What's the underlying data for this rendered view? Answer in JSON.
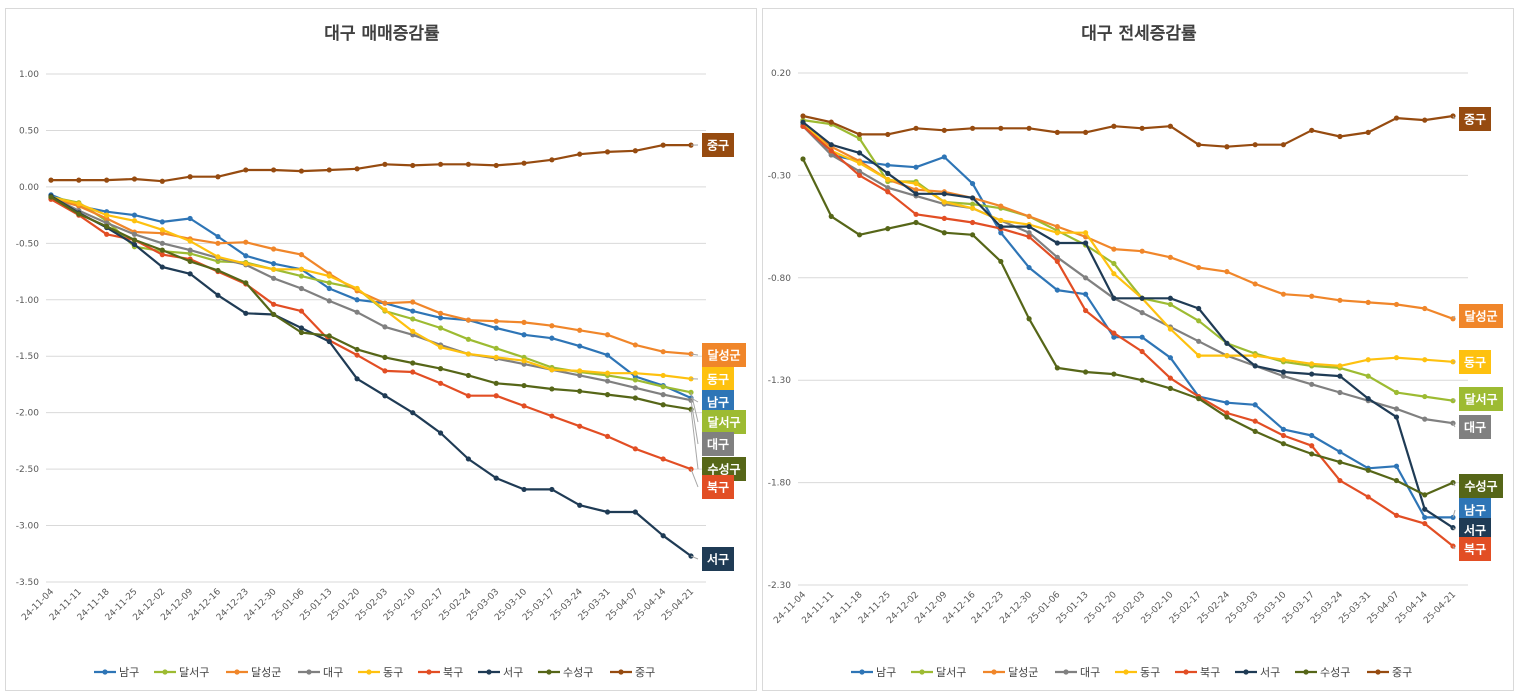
{
  "colors": {
    "남구": "#2e75b6",
    "달서구": "#9dbb32",
    "달성군": "#f0862a",
    "대구": "#808080",
    "동구": "#fec10f",
    "북구": "#e24e24",
    "서구": "#1f3b55",
    "수성구": "#566618",
    "중구": "#964b10"
  },
  "chart_data": [
    {
      "type": "line",
      "title": "대구 매매증감률",
      "ylim": [
        -3.5,
        1.0
      ],
      "ytick_step": 0.5,
      "ytick_labels": [
        "1.00",
        "0.50",
        "0.00",
        "-0.50",
        "-1.00",
        "-1.50",
        "-2.00",
        "-2.50",
        "-3.00",
        "-3.50"
      ],
      "categories": [
        "24-11-04",
        "24-11-11",
        "24-11-18",
        "24-11-25",
        "24-12-02",
        "24-12-09",
        "24-12-16",
        "24-12-23",
        "24-12-30",
        "25-01-06",
        "25-01-13",
        "25-01-20",
        "25-02-03",
        "25-02-10",
        "25-02-17",
        "25-02-24",
        "25-03-03",
        "25-03-10",
        "25-03-17",
        "25-03-24",
        "25-03-31",
        "25-04-07",
        "25-04-14",
        "25-04-21"
      ],
      "series": [
        {
          "name": "남구",
          "values": [
            -0.07,
            -0.17,
            -0.22,
            -0.25,
            -0.31,
            -0.28,
            -0.44,
            -0.61,
            -0.68,
            -0.73,
            -0.9,
            -1.0,
            -1.03,
            -1.1,
            -1.16,
            -1.18,
            -1.25,
            -1.31,
            -1.34,
            -1.41,
            -1.49,
            -1.68,
            -1.76,
            -1.87
          ]
        },
        {
          "name": "달서구",
          "values": [
            -0.09,
            -0.14,
            -0.3,
            -0.53,
            -0.57,
            -0.59,
            -0.66,
            -0.67,
            -0.73,
            -0.79,
            -0.85,
            -0.9,
            -1.1,
            -1.17,
            -1.25,
            -1.35,
            -1.43,
            -1.51,
            -1.6,
            -1.64,
            -1.67,
            -1.71,
            -1.77,
            -1.82
          ]
        },
        {
          "name": "달성군",
          "values": [
            -0.1,
            -0.17,
            -0.28,
            -0.4,
            -0.41,
            -0.46,
            -0.5,
            -0.49,
            -0.55,
            -0.6,
            -0.77,
            -0.92,
            -1.03,
            -1.02,
            -1.12,
            -1.18,
            -1.19,
            -1.2,
            -1.23,
            -1.27,
            -1.31,
            -1.4,
            -1.46,
            -1.48
          ]
        },
        {
          "name": "대구",
          "values": [
            -0.09,
            -0.21,
            -0.32,
            -0.42,
            -0.5,
            -0.56,
            -0.63,
            -0.69,
            -0.81,
            -0.9,
            -1.01,
            -1.11,
            -1.24,
            -1.31,
            -1.4,
            -1.48,
            -1.52,
            -1.57,
            -1.62,
            -1.67,
            -1.72,
            -1.78,
            -1.84,
            -1.89
          ]
        },
        {
          "name": "동구",
          "values": [
            -0.09,
            -0.15,
            -0.25,
            -0.3,
            -0.38,
            -0.48,
            -0.62,
            -0.68,
            -0.73,
            -0.73,
            -0.79,
            -0.9,
            -1.09,
            -1.28,
            -1.42,
            -1.48,
            -1.51,
            -1.54,
            -1.62,
            -1.63,
            -1.65,
            -1.65,
            -1.67,
            -1.7
          ]
        },
        {
          "name": "북구",
          "values": [
            -0.11,
            -0.25,
            -0.42,
            -0.47,
            -0.6,
            -0.64,
            -0.75,
            -0.86,
            -1.04,
            -1.1,
            -1.36,
            -1.49,
            -1.63,
            -1.64,
            -1.74,
            -1.85,
            -1.85,
            -1.94,
            -2.03,
            -2.12,
            -2.21,
            -2.32,
            -2.41,
            -2.5
          ]
        },
        {
          "name": "서구",
          "values": [
            -0.08,
            -0.23,
            -0.36,
            -0.51,
            -0.71,
            -0.77,
            -0.96,
            -1.12,
            -1.13,
            -1.25,
            -1.37,
            -1.7,
            -1.85,
            -2.0,
            -2.18,
            -2.41,
            -2.58,
            -2.68,
            -2.68,
            -2.82,
            -2.88,
            -2.88,
            -3.09,
            -3.27
          ]
        },
        {
          "name": "수성구",
          "values": [
            -0.09,
            -0.24,
            -0.35,
            -0.47,
            -0.56,
            -0.66,
            -0.74,
            -0.85,
            -1.13,
            -1.29,
            -1.32,
            -1.44,
            -1.51,
            -1.56,
            -1.61,
            -1.67,
            -1.74,
            -1.76,
            -1.79,
            -1.81,
            -1.84,
            -1.87,
            -1.93,
            -1.97
          ]
        },
        {
          "name": "중구",
          "values": [
            0.06,
            0.06,
            0.06,
            0.07,
            0.05,
            0.09,
            0.09,
            0.15,
            0.15,
            0.14,
            0.15,
            0.16,
            0.2,
            0.19,
            0.2,
            0.2,
            0.19,
            0.21,
            0.24,
            0.29,
            0.31,
            0.32,
            0.37,
            0.37
          ]
        }
      ],
      "end_labels": [
        "중구",
        "달성군",
        "동구",
        "남구",
        "달서구",
        "대구",
        "수성구",
        "북구",
        "서구"
      ],
      "legend": [
        "남구",
        "달서구",
        "달성군",
        "대구",
        "동구",
        "북구",
        "서구",
        "수성구",
        "중구"
      ]
    },
    {
      "type": "line",
      "title": "대구 전세증감률",
      "ylim": [
        -2.3,
        0.2
      ],
      "ytick_step": 0.5,
      "ytick_labels": [
        "0.20",
        "-0.30",
        "-0.80",
        "-1.30",
        "-1.80",
        "-2.30"
      ],
      "categories": [
        "24-11-04",
        "24-11-11",
        "24-11-18",
        "24-11-25",
        "24-12-02",
        "24-12-09",
        "24-12-16",
        "24-12-23",
        "24-12-30",
        "25-01-06",
        "25-01-13",
        "25-01-20",
        "25-02-03",
        "25-02-10",
        "25-02-17",
        "25-02-24",
        "25-03-03",
        "25-03-10",
        "25-03-17",
        "25-03-24",
        "25-03-31",
        "25-04-07",
        "25-04-14",
        "25-04-21"
      ],
      "series": [
        {
          "name": "남구",
          "values": [
            -0.05,
            -0.2,
            -0.23,
            -0.25,
            -0.26,
            -0.21,
            -0.34,
            -0.58,
            -0.75,
            -0.86,
            -0.88,
            -1.09,
            -1.09,
            -1.19,
            -1.38,
            -1.41,
            -1.42,
            -1.54,
            -1.57,
            -1.65,
            -1.73,
            -1.72,
            -1.97,
            -1.97
          ]
        },
        {
          "name": "달서구",
          "values": [
            -0.03,
            -0.05,
            -0.12,
            -0.33,
            -0.33,
            -0.43,
            -0.44,
            -0.46,
            -0.5,
            -0.57,
            -0.64,
            -0.73,
            -0.9,
            -0.93,
            -1.01,
            -1.12,
            -1.17,
            -1.21,
            -1.23,
            -1.24,
            -1.28,
            -1.36,
            -1.38,
            -1.4
          ]
        },
        {
          "name": "달성군",
          "values": [
            -0.06,
            -0.16,
            -0.23,
            -0.32,
            -0.37,
            -0.38,
            -0.41,
            -0.45,
            -0.5,
            -0.55,
            -0.6,
            -0.66,
            -0.67,
            -0.7,
            -0.75,
            -0.77,
            -0.83,
            -0.88,
            -0.89,
            -0.91,
            -0.92,
            -0.93,
            -0.95,
            -1.0
          ]
        },
        {
          "name": "대구",
          "values": [
            -0.06,
            -0.2,
            -0.28,
            -0.36,
            -0.4,
            -0.44,
            -0.46,
            -0.52,
            -0.58,
            -0.7,
            -0.8,
            -0.9,
            -0.97,
            -1.04,
            -1.11,
            -1.18,
            -1.23,
            -1.28,
            -1.32,
            -1.36,
            -1.4,
            -1.44,
            -1.49,
            -1.51
          ]
        },
        {
          "name": "동구",
          "values": [
            -0.04,
            -0.18,
            -0.24,
            -0.32,
            -0.34,
            -0.43,
            -0.46,
            -0.52,
            -0.54,
            -0.58,
            -0.58,
            -0.78,
            -0.9,
            -1.05,
            -1.18,
            -1.18,
            -1.18,
            -1.2,
            -1.22,
            -1.23,
            -1.2,
            -1.19,
            -1.2,
            -1.21
          ]
        },
        {
          "name": "북구",
          "values": [
            -0.06,
            -0.18,
            -0.3,
            -0.38,
            -0.49,
            -0.51,
            -0.53,
            -0.56,
            -0.6,
            -0.72,
            -0.96,
            -1.07,
            -1.16,
            -1.29,
            -1.38,
            -1.46,
            -1.5,
            -1.57,
            -1.62,
            -1.79,
            -1.87,
            -1.96,
            -2.0,
            -2.11
          ]
        },
        {
          "name": "서구",
          "values": [
            -0.04,
            -0.15,
            -0.19,
            -0.29,
            -0.39,
            -0.39,
            -0.41,
            -0.55,
            -0.55,
            -0.63,
            -0.63,
            -0.9,
            -0.9,
            -0.9,
            -0.95,
            -1.12,
            -1.23,
            -1.26,
            -1.27,
            -1.28,
            -1.39,
            -1.48,
            -1.93,
            -2.02
          ]
        },
        {
          "name": "수성구",
          "values": [
            -0.22,
            -0.5,
            -0.59,
            -0.56,
            -0.53,
            -0.58,
            -0.59,
            -0.72,
            -1.0,
            -1.24,
            -1.26,
            -1.27,
            -1.3,
            -1.34,
            -1.39,
            -1.48,
            -1.55,
            -1.61,
            -1.66,
            -1.7,
            -1.74,
            -1.79,
            -1.86,
            -1.8
          ]
        },
        {
          "name": "중구",
          "values": [
            -0.01,
            -0.04,
            -0.1,
            -0.1,
            -0.07,
            -0.08,
            -0.07,
            -0.07,
            -0.07,
            -0.09,
            -0.09,
            -0.06,
            -0.07,
            -0.06,
            -0.15,
            -0.16,
            -0.15,
            -0.15,
            -0.08,
            -0.11,
            -0.09,
            -0.02,
            -0.03,
            -0.01
          ]
        }
      ],
      "end_labels": [
        "중구",
        "달성군",
        "동구",
        "달서구",
        "대구",
        "수성구",
        "남구",
        "서구",
        "북구"
      ],
      "legend": [
        "남구",
        "달서구",
        "달성군",
        "대구",
        "동구",
        "북구",
        "서구",
        "수성구",
        "중구"
      ]
    }
  ]
}
